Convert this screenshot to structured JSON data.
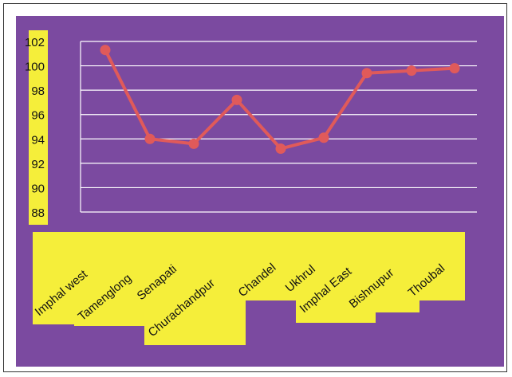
{
  "chart_data": {
    "type": "line",
    "title": "",
    "xlabel": "",
    "ylabel": "",
    "categories": [
      "Imphal west",
      "Tamenglong",
      "Senapati",
      "Churachandpur",
      "Chandel",
      "Ukhrul",
      "Imphal East",
      "Bishnupur",
      "Thoubal"
    ],
    "series": [
      {
        "values": [
          101.3,
          94.0,
          93.6,
          97.2,
          93.2,
          94.1,
          99.4,
          99.6,
          99.8
        ]
      }
    ],
    "ylim": [
      88,
      102
    ],
    "yticks": [
      "102",
      "100",
      "98",
      "96",
      "94",
      "92",
      "90",
      "88"
    ],
    "grid": true,
    "legend": "none"
  },
  "colors": {
    "background": "#7b4aa0",
    "label_highlight": "#f5ee3a",
    "line": "#e05a5a",
    "gridline": "#ffffff"
  }
}
